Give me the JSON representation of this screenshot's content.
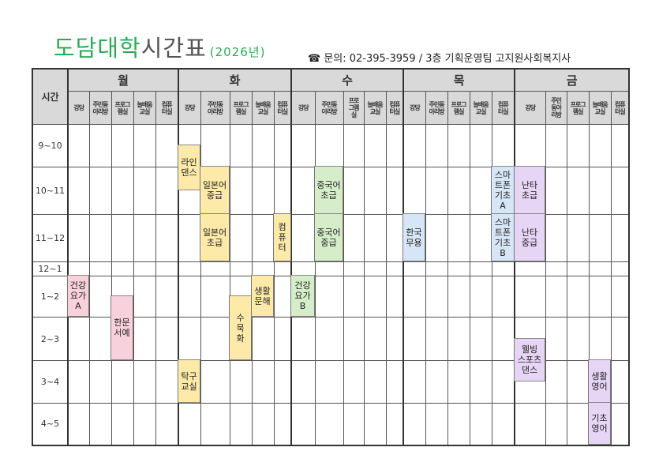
{
  "header": {
    "title_green": "도담대학",
    "title_rest": "시간표",
    "year": "(2026년)",
    "phone_icon": "☎",
    "info": "문의: 02-395-3959 / 3층 기획운영팀 고지원사회복지사"
  },
  "table": {
    "time_header": "시간",
    "days": [
      {
        "name": "월",
        "rooms": [
          "강당",
          "주민동\n아리방",
          "프로그\n램실",
          "늘배움\n교실",
          "컴퓨\n터실"
        ]
      },
      {
        "name": "화",
        "rooms": [
          "강당",
          "주민동\n아리방",
          "프로그\n램실",
          "늘배움\n교실",
          "컴퓨\n터실"
        ]
      },
      {
        "name": "수",
        "rooms": [
          "강당",
          "주민동\n아리방",
          "프로\n그램\n실",
          "늘배움\n교실",
          "컴퓨\n터실"
        ]
      },
      {
        "name": "목",
        "rooms": [
          "강당",
          "주민동\n아리방",
          "프로그\n램실",
          "늘배움\n교실",
          "컴퓨\n터실"
        ]
      },
      {
        "name": "금",
        "rooms": [
          "강당",
          "주민\n동아\n리방",
          "프로그\n램실",
          "늘배움\n교실",
          "컴퓨\n터실"
        ]
      }
    ],
    "times": [
      "9~10",
      "10~11",
      "11~12",
      "12~1",
      "1~2",
      "2~3",
      "3~4",
      "4~5"
    ]
  },
  "colors": {
    "yellow": "#fdeaa8",
    "green": "#d5edc8",
    "blue": "#d7e6f7",
    "purple": "#e7d5f6",
    "pink": "#f9d1dd"
  },
  "classes": [
    {
      "name": "라인\n댄스",
      "day": "화",
      "room": "강당",
      "time": "9:30~10:30",
      "color": "yellow"
    },
    {
      "name": "일본어\n중급",
      "day": "화",
      "room": "주민동아리방",
      "time": "10~11",
      "color": "yellow"
    },
    {
      "name": "일본어\n초급",
      "day": "화",
      "room": "주민동아리방",
      "time": "11~12",
      "color": "yellow"
    },
    {
      "name": "컴\n퓨\n터",
      "day": "화",
      "room": "컴퓨터실",
      "time": "11~12",
      "color": "yellow"
    },
    {
      "name": "중국어\n초급",
      "day": "수",
      "room": "주민동아리방",
      "time": "10~11",
      "color": "green"
    },
    {
      "name": "중국어\n중급",
      "day": "수",
      "room": "주민동아리방",
      "time": "11~12",
      "color": "green"
    },
    {
      "name": "한국\n무용",
      "day": "목",
      "room": "강당",
      "time": "11~12",
      "color": "blue"
    },
    {
      "name": "스마\n트폰\n기초\nA",
      "day": "목",
      "room": "컴퓨터실",
      "time": "10~11",
      "color": "blue"
    },
    {
      "name": "스마\n트폰\n기초\nB",
      "day": "목",
      "room": "컴퓨터실",
      "time": "11~12",
      "color": "blue"
    },
    {
      "name": "난타\n초급",
      "day": "금",
      "room": "강당",
      "time": "10~11",
      "color": "purple"
    },
    {
      "name": "난타\n중급",
      "day": "금",
      "room": "강당",
      "time": "11~12",
      "color": "purple"
    },
    {
      "name": "건강\n요가\nA",
      "day": "월",
      "room": "강당",
      "time": "1~2",
      "color": "pink"
    },
    {
      "name": "한문\n서예",
      "day": "월",
      "room": "프로그램실",
      "time": "1:30~3",
      "color": "pink"
    },
    {
      "name": "수\n묵\n화",
      "day": "화",
      "room": "프로그램실",
      "time": "1:30~3",
      "color": "yellow"
    },
    {
      "name": "생활\n문해",
      "day": "화",
      "room": "늘배움교실",
      "time": "1~2",
      "color": "yellow"
    },
    {
      "name": "건강\n요가\nB",
      "day": "수",
      "room": "강당",
      "time": "1~2",
      "color": "green"
    },
    {
      "name": "탁구\n교실",
      "day": "화",
      "room": "강당",
      "time": "3~4",
      "color": "yellow"
    },
    {
      "name": "웰빙\n스포츠\n댄스",
      "day": "금",
      "room": "강당",
      "time": "2:30~3:30",
      "color": "purple"
    },
    {
      "name": "생활\n영어",
      "day": "금",
      "room": "늘배움교실",
      "time": "3~4",
      "color": "purple"
    },
    {
      "name": "기초\n영어",
      "day": "금",
      "room": "늘배움교실",
      "time": "4~5",
      "color": "purple"
    }
  ]
}
